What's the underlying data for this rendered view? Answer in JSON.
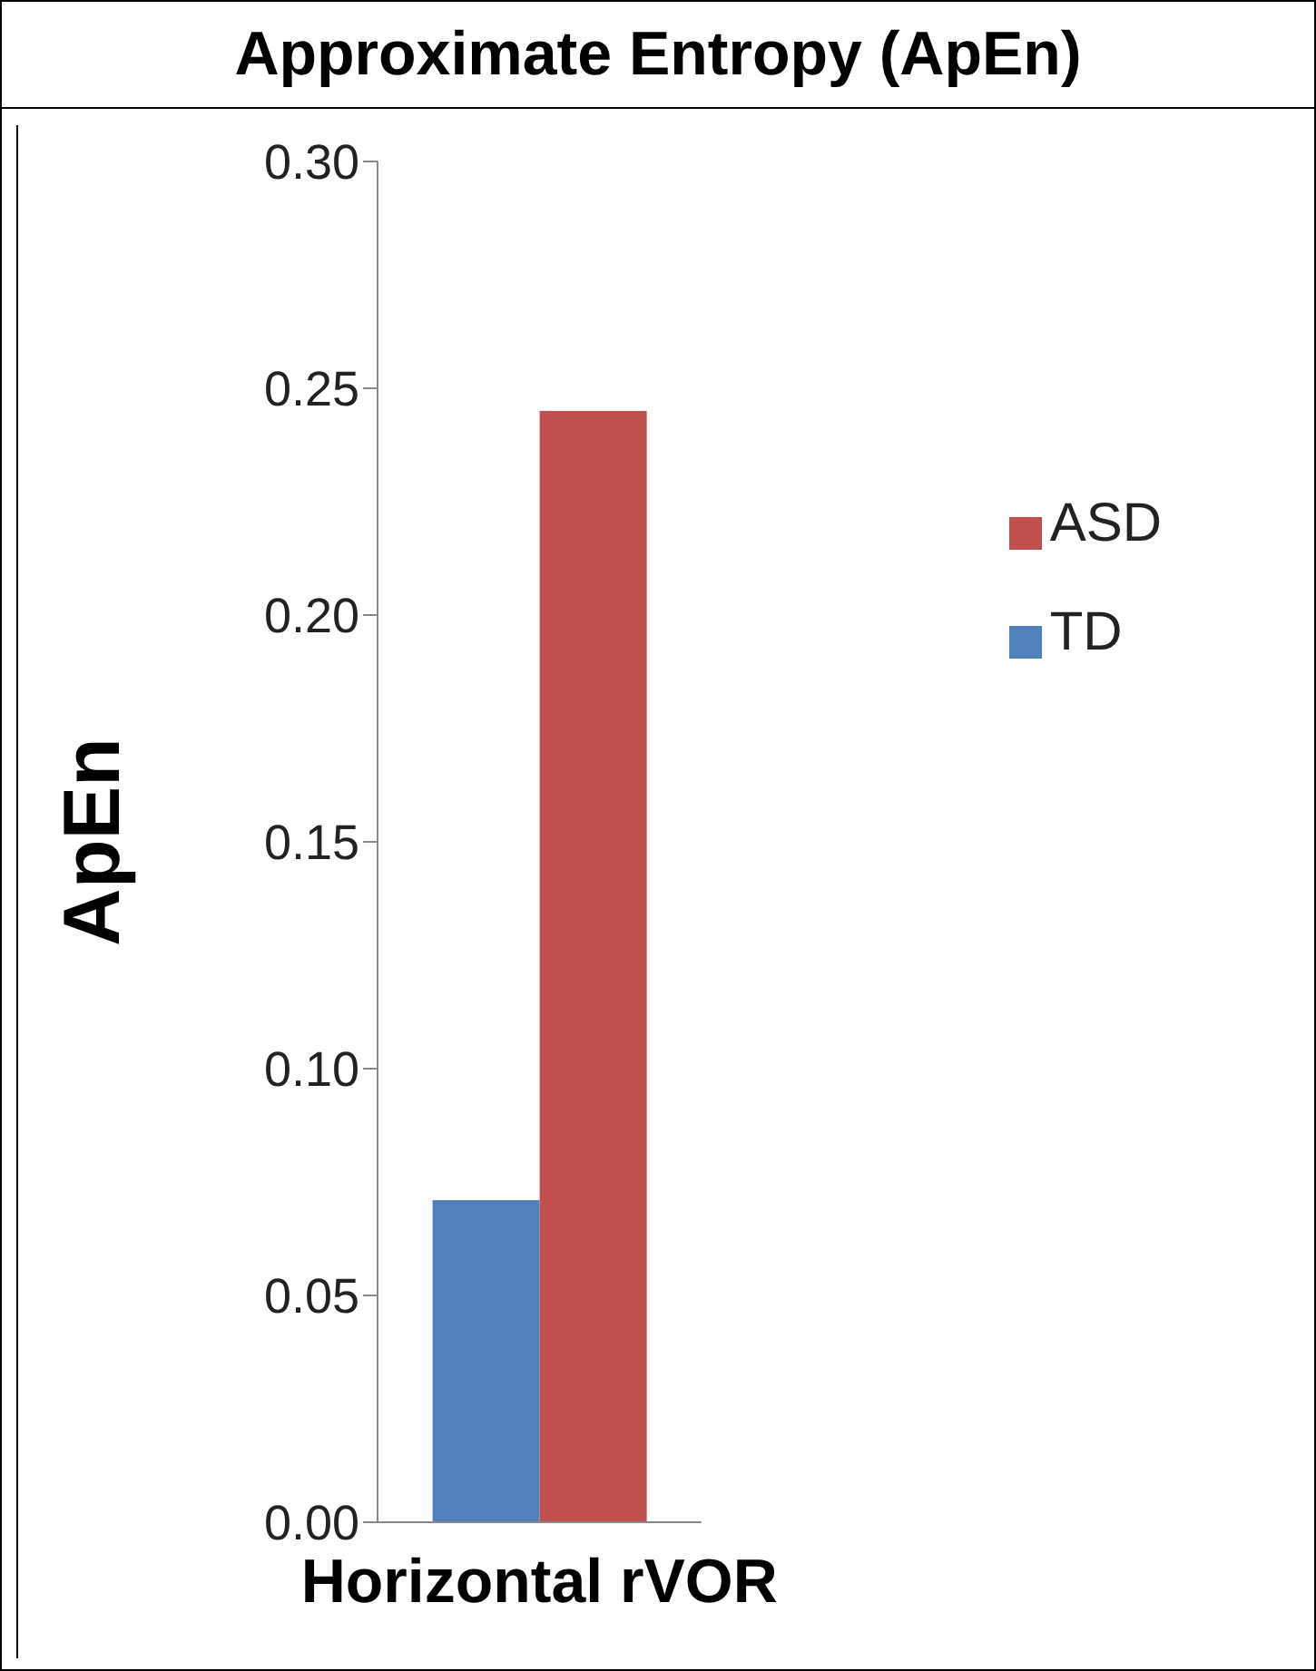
{
  "chart_data": {
    "type": "bar",
    "title": "Approximate Entropy (ApEn)",
    "ylabel": "ApEn",
    "categories": [
      "Horizontal rVOR"
    ],
    "series": [
      {
        "name": "TD",
        "color": "#4f81bd",
        "values": [
          0.071
        ]
      },
      {
        "name": "ASD",
        "color": "#c0504d",
        "values": [
          0.245
        ]
      }
    ],
    "ylim": [
      0,
      0.3
    ],
    "yticks": [
      {
        "value": 0,
        "label": "0.00"
      },
      {
        "value": 0.05,
        "label": "0.05"
      },
      {
        "value": 0.1,
        "label": "0.10"
      },
      {
        "value": 0.15,
        "label": "0.15"
      },
      {
        "value": 0.2,
        "label": "0.20"
      },
      {
        "value": 0.25,
        "label": "0.25"
      },
      {
        "value": 0.3,
        "label": "0.30"
      }
    ],
    "grid": false,
    "legend": "right"
  }
}
